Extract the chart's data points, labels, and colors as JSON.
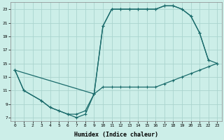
{
  "xlabel": "Humidex (Indice chaleur)",
  "bg_color": "#cceee8",
  "grid_color": "#aad4ce",
  "line_color": "#1a6b6b",
  "xlim": [
    -0.5,
    23.5
  ],
  "ylim": [
    6.5,
    24.0
  ],
  "yticks": [
    7,
    9,
    11,
    13,
    15,
    17,
    19,
    21,
    23
  ],
  "xticks": [
    0,
    1,
    2,
    3,
    4,
    5,
    6,
    7,
    8,
    9,
    10,
    11,
    12,
    13,
    14,
    15,
    16,
    17,
    18,
    19,
    20,
    21,
    22,
    23
  ],
  "line1_x": [
    0,
    1,
    3,
    4,
    5,
    6,
    7,
    8,
    9,
    10,
    11,
    12,
    13,
    14,
    15,
    16,
    17,
    18,
    19,
    20,
    21,
    22,
    23
  ],
  "line1_y": [
    14,
    11,
    9.5,
    8.5,
    8.0,
    7.5,
    7.5,
    8.0,
    10.5,
    11.5,
    11.5,
    11.5,
    11.5,
    11.5,
    11.5,
    11.5,
    12.0,
    12.5,
    13.0,
    13.5,
    14.0,
    14.5,
    15.0
  ],
  "line2_x": [
    0,
    1,
    3,
    4,
    5,
    6,
    7,
    8,
    9,
    10,
    11,
    12,
    13,
    14,
    15,
    16,
    17,
    18,
    19,
    20,
    21,
    22
  ],
  "line2_y": [
    14,
    11,
    9.5,
    8.5,
    8.0,
    7.5,
    7.0,
    7.5,
    10.5,
    20.5,
    23.0,
    23.0,
    23.0,
    23.0,
    23.0,
    23.0,
    23.5,
    23.5,
    23.0,
    22.0,
    19.5,
    15.5
  ],
  "line3_x": [
    0,
    9,
    10,
    11,
    12,
    13,
    14,
    15,
    16,
    17,
    18,
    19,
    20,
    21,
    22,
    23
  ],
  "line3_y": [
    14,
    10.5,
    20.5,
    23.0,
    23.0,
    23.0,
    23.0,
    23.0,
    23.0,
    23.5,
    23.5,
    23.0,
    22.0,
    19.5,
    15.5,
    15.0
  ]
}
